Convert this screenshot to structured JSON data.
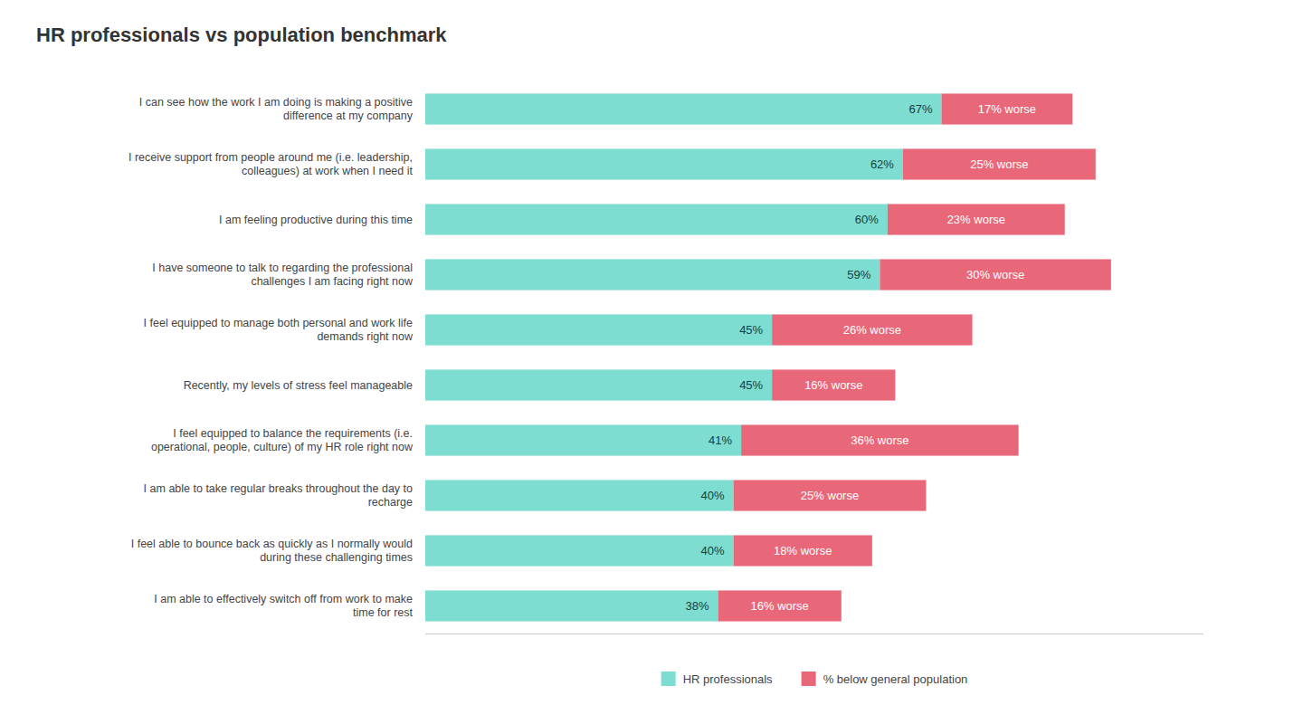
{
  "chart_data": {
    "type": "bar",
    "orientation": "horizontal",
    "stacked": true,
    "title": "HR professionals vs population benchmark",
    "categories": [
      "I can see how the work I am doing is making a positive\ndifference at my company",
      "I receive support from people around me (i.e. leadership,\ncolleagues) at work when I need it",
      "I am feeling productive during this time",
      "I have someone to talk to regarding the professional\nchallenges I am facing right now",
      "I feel equipped to manage both personal and work life\ndemands right now",
      "Recently, my levels of stress feel manageable",
      "I feel equipped to balance the requirements (i.e.\noperational, people, culture) of my HR role right now",
      "I am able to take regular breaks throughout the day to\nrecharge",
      "I feel able to bounce back as quickly as I normally would\nduring these challenging times",
      "I am able to effectively switch off from work to make\ntime for rest"
    ],
    "series": [
      {
        "name": "HR professionals",
        "color": "#7DDDD1",
        "values": [
          67,
          62,
          60,
          59,
          45,
          45,
          41,
          40,
          40,
          38
        ],
        "value_labels": [
          "67%",
          "62%",
          "60%",
          "59%",
          "45%",
          "45%",
          "41%",
          "40%",
          "40%",
          "38%"
        ]
      },
      {
        "name": "% below general population",
        "color": "#E8687A",
        "values": [
          17,
          25,
          23,
          30,
          26,
          16,
          36,
          25,
          18,
          16
        ],
        "value_labels": [
          "17% worse",
          "25% worse",
          "23% worse",
          "30% worse",
          "26% worse",
          "16% worse",
          "36% worse",
          "25% worse",
          "18% worse",
          "16% worse"
        ]
      }
    ],
    "xlim": [
      0,
      101
    ],
    "data_labels": true,
    "tick_labels": "y",
    "grid": false,
    "legend": "bottom"
  }
}
